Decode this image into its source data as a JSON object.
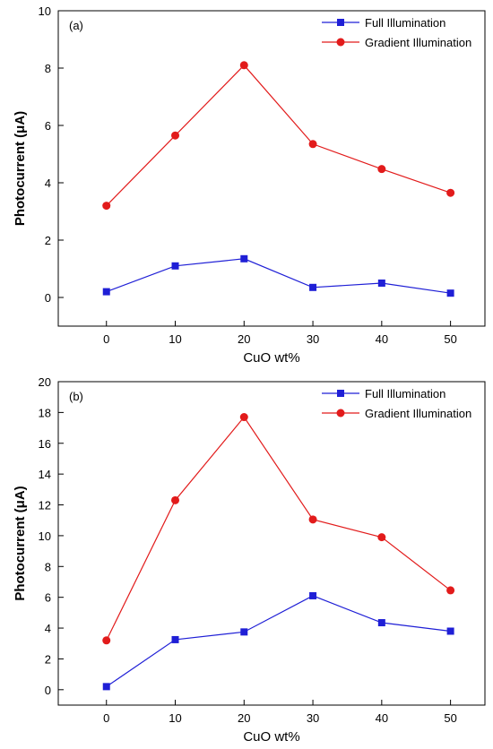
{
  "chart_data": [
    {
      "type": "line",
      "panel_label": "(a)",
      "xlabel": "CuO wt%",
      "ylabel": "Photocurrent (μA)",
      "x": [
        0,
        10,
        20,
        30,
        40,
        50
      ],
      "xticks": [
        0,
        10,
        20,
        30,
        40,
        50
      ],
      "xlim": [
        -7,
        55
      ],
      "yticks": [
        0,
        2,
        4,
        6,
        8,
        10
      ],
      "ylim": [
        -1,
        10
      ],
      "grid": false,
      "legend": "top-right",
      "series": [
        {
          "name": "Full Illumination",
          "color": "#1f1fd6",
          "marker": "square",
          "values": [
            0.2,
            1.1,
            1.35,
            0.35,
            0.5,
            0.15
          ]
        },
        {
          "name": "Gradient Illumination",
          "color": "#e21b1b",
          "marker": "circle",
          "values": [
            3.2,
            5.65,
            8.1,
            5.35,
            4.48,
            3.65
          ]
        }
      ]
    },
    {
      "type": "line",
      "panel_label": "(b)",
      "xlabel": "CuO wt%",
      "ylabel": "Photocurrent (μA)",
      "x": [
        0,
        10,
        20,
        30,
        40,
        50
      ],
      "xticks": [
        0,
        10,
        20,
        30,
        40,
        50
      ],
      "xlim": [
        -7,
        55
      ],
      "yticks": [
        0,
        2,
        4,
        6,
        8,
        10,
        12,
        14,
        16,
        18,
        20
      ],
      "ylim": [
        -1,
        20
      ],
      "grid": false,
      "legend": "top-right",
      "series": [
        {
          "name": "Full Illumination",
          "color": "#1f1fd6",
          "marker": "square",
          "values": [
            0.2,
            3.25,
            3.75,
            6.1,
            4.35,
            3.8
          ]
        },
        {
          "name": "Gradient Illumination",
          "color": "#e21b1b",
          "marker": "circle",
          "values": [
            3.2,
            12.3,
            17.7,
            11.05,
            9.9,
            6.45
          ]
        }
      ]
    }
  ]
}
